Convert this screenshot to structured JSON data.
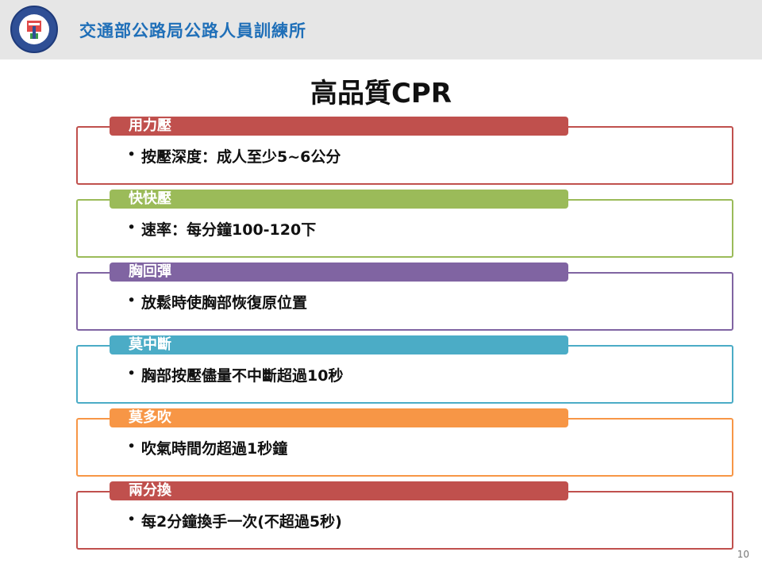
{
  "header": {
    "org_name": "交通部公路局公路人員訓練所"
  },
  "title": "高品質CPR",
  "items": [
    {
      "label": "用力壓",
      "text": "按壓深度：成人至少5~6公分",
      "color": "#c0504d"
    },
    {
      "label": "快快壓",
      "text": "速率：每分鐘100-120下",
      "color": "#9bbb59"
    },
    {
      "label": "胸回彈",
      "text": "放鬆時使胸部恢復原位置",
      "color": "#8064a2"
    },
    {
      "label": "莫中斷",
      "text": "胸部按壓儘量不中斷超過10秒",
      "color": "#4bacc6"
    },
    {
      "label": "莫多吹",
      "text": "吹氣時間勿超過1秒鐘",
      "color": "#f79646"
    },
    {
      "label": "兩分換",
      "text": "每2分鐘換手一次(不超過5秒)",
      "color": "#c0504d"
    }
  ],
  "page_number": "10"
}
